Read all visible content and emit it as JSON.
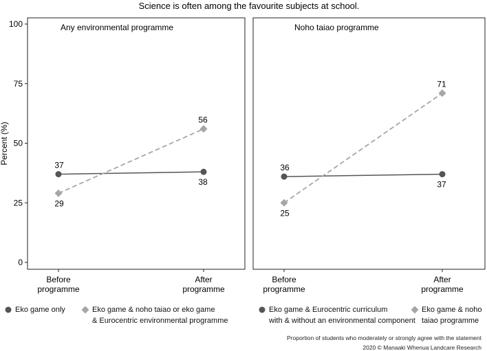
{
  "title": "Science is often among the favourite subjects at school.",
  "ylabel": "Percent (%)",
  "footnote": "Proportion of students who moderately or strongly agree with the statement",
  "credit": "2020 © Manaaki Whenua Landcare Research",
  "chart_data": [
    {
      "type": "line",
      "title": "Any environmental programme",
      "categories": [
        "Before programme",
        "After programme"
      ],
      "ylabel": "Percent (%)",
      "ylim": [
        0,
        100
      ],
      "yticks": [
        0,
        25,
        50,
        75,
        100
      ],
      "grid": false,
      "series": [
        {
          "name": "Eko game only",
          "values": [
            37,
            38
          ],
          "color": "#555555",
          "style": "solid",
          "marker": "circle"
        },
        {
          "name": "Eko game & noho taiao or eko game & Eurocentric environmental programme",
          "values": [
            29,
            56
          ],
          "color": "#a6a6a6",
          "style": "dashed",
          "marker": "diamond"
        }
      ]
    },
    {
      "type": "line",
      "title": "Noho taiao programme",
      "categories": [
        "Before programme",
        "After programme"
      ],
      "ylim": [
        0,
        100
      ],
      "grid": false,
      "series": [
        {
          "name": "Eko game & Eurocentric curriculum with & without an environmental component",
          "values": [
            36,
            37
          ],
          "color": "#555555",
          "style": "solid",
          "marker": "circle"
        },
        {
          "name": "Eko game & noho taiao programme",
          "values": [
            25,
            71
          ],
          "color": "#a6a6a6",
          "style": "dashed",
          "marker": "diamond"
        }
      ]
    }
  ],
  "legends": [
    {
      "items": [
        {
          "marker": "circle",
          "color": "#555555",
          "lines": [
            "Eko game only"
          ]
        },
        {
          "marker": "diamond",
          "color": "#a6a6a6",
          "lines": [
            "Eko game & noho taiao or eko game",
            "& Eurocentric environmental programme"
          ]
        }
      ]
    },
    {
      "items": [
        {
          "marker": "circle",
          "color": "#555555",
          "lines": [
            "Eko game & Eurocentric curriculum",
            "with & without an environmental component"
          ]
        },
        {
          "marker": "diamond",
          "color": "#a6a6a6",
          "lines": [
            "Eko game & noho",
            "taiao programme"
          ]
        }
      ]
    }
  ]
}
